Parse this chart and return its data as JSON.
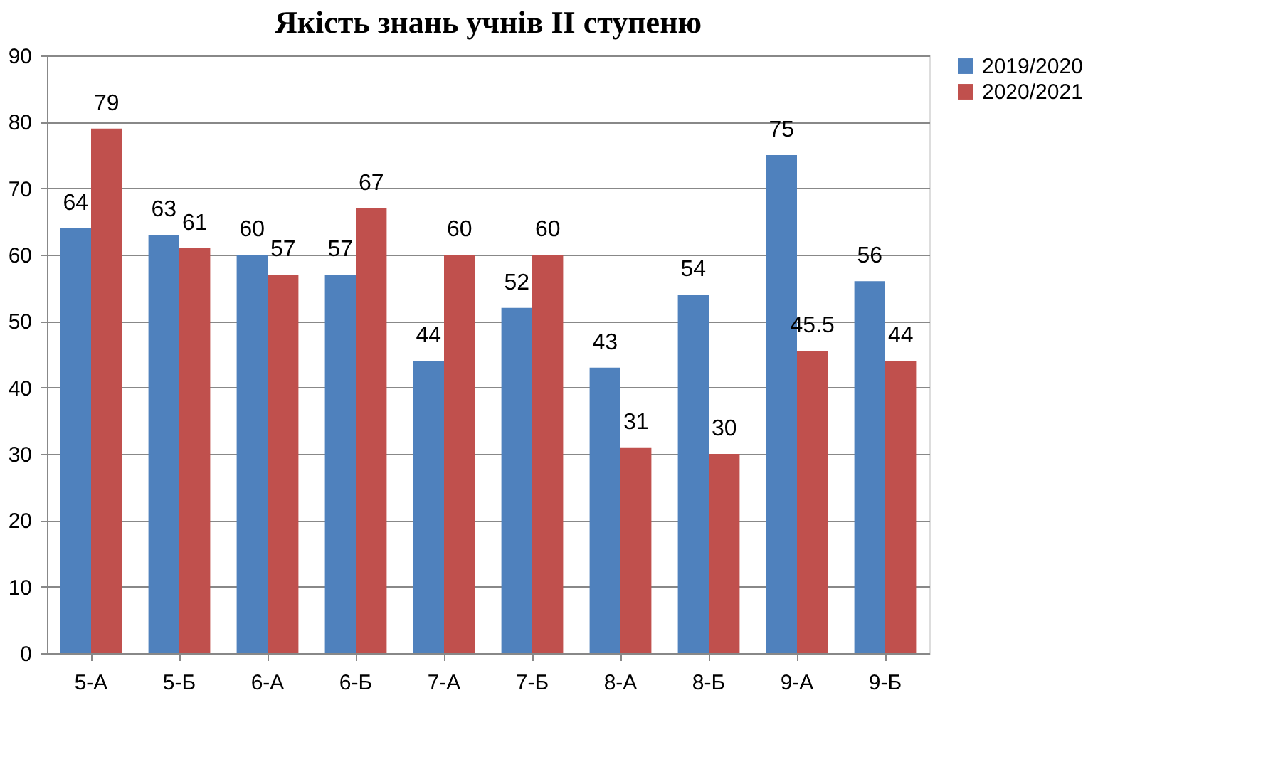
{
  "chart_data": {
    "type": "bar",
    "title": "Якість знань учнів ІІ ступеню",
    "categories": [
      "5-А",
      "5-Б",
      "6-А",
      "6-Б",
      "7-А",
      "7-Б",
      "8-А",
      "8-Б",
      "9-А",
      "9-Б"
    ],
    "series": [
      {
        "name": "2019/2020",
        "color": "#4f81bd",
        "values": [
          64,
          63,
          60,
          57,
          44,
          52,
          43,
          54,
          75,
          56
        ]
      },
      {
        "name": "2020/2021",
        "color": "#c0504d",
        "values": [
          79,
          61,
          57,
          67,
          60,
          60,
          31,
          30,
          45.5,
          44
        ]
      }
    ],
    "ylim": [
      0,
      90
    ],
    "yticks": [
      0,
      10,
      20,
      30,
      40,
      50,
      60,
      70,
      80,
      90
    ],
    "grid": "y",
    "legend": "right",
    "data_labels": true
  }
}
